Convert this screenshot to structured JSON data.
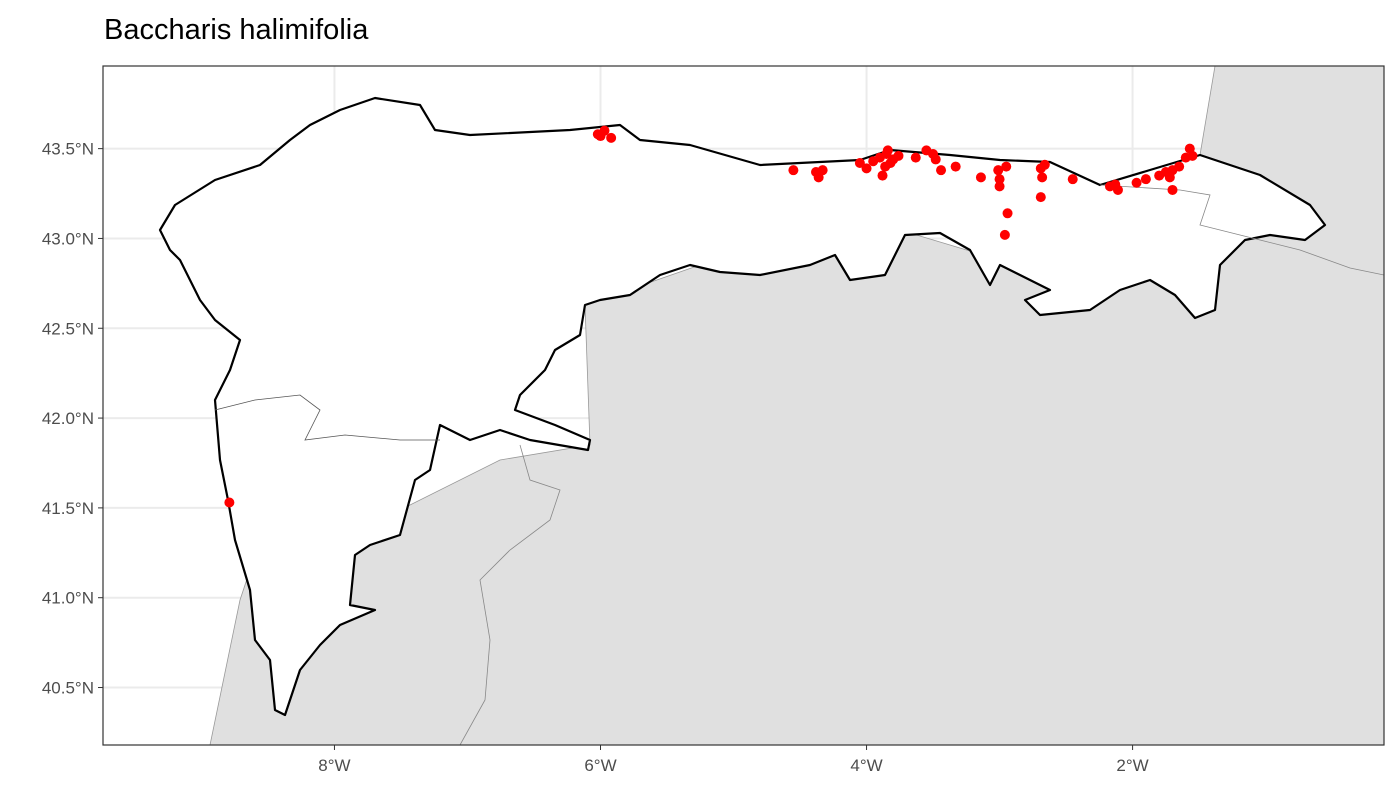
{
  "title": "Baccharis halimifolia",
  "chart_data": {
    "type": "scatter",
    "map": true,
    "title": "Baccharis halimifolia",
    "xlim": [
      -9.74,
      -0.11
    ],
    "ylim": [
      40.18,
      43.96
    ],
    "x_ticks": [
      {
        "value": -8,
        "label": "8°W"
      },
      {
        "value": -6,
        "label": "6°W"
      },
      {
        "value": -4,
        "label": "4°W"
      },
      {
        "value": -2,
        "label": "2°W"
      }
    ],
    "y_ticks": [
      {
        "value": 40.5,
        "label": "40.5°N"
      },
      {
        "value": 41.0,
        "label": "41.0°N"
      },
      {
        "value": 41.5,
        "label": "41.5°N"
      },
      {
        "value": 42.0,
        "label": "42.0°N"
      },
      {
        "value": 42.5,
        "label": "42.5°N"
      },
      {
        "value": 43.0,
        "label": "43.0°N"
      },
      {
        "value": 43.5,
        "label": "43.5°N"
      }
    ],
    "grid": true,
    "point_color": "#ff0000",
    "land_color": "#e0e0e0",
    "points": [
      [
        -8.79,
        41.53
      ],
      [
        -6.02,
        43.58
      ],
      [
        -5.97,
        43.6
      ],
      [
        -5.92,
        43.56
      ],
      [
        -6.0,
        43.57
      ],
      [
        -4.55,
        43.38
      ],
      [
        -4.38,
        43.37
      ],
      [
        -4.33,
        43.38
      ],
      [
        -4.36,
        43.34
      ],
      [
        -4.05,
        43.42
      ],
      [
        -4.0,
        43.39
      ],
      [
        -3.95,
        43.43
      ],
      [
        -3.9,
        43.45
      ],
      [
        -3.85,
        43.47
      ],
      [
        -3.82,
        43.42
      ],
      [
        -3.88,
        43.35
      ],
      [
        -3.86,
        43.4
      ],
      [
        -3.8,
        43.44
      ],
      [
        -3.76,
        43.46
      ],
      [
        -3.84,
        43.49
      ],
      [
        -3.63,
        43.45
      ],
      [
        -3.55,
        43.49
      ],
      [
        -3.5,
        43.47
      ],
      [
        -3.48,
        43.44
      ],
      [
        -3.44,
        43.38
      ],
      [
        -3.33,
        43.4
      ],
      [
        -3.14,
        43.34
      ],
      [
        -3.01,
        43.38
      ],
      [
        -3.0,
        43.29
      ],
      [
        -3.0,
        43.33
      ],
      [
        -2.95,
        43.4
      ],
      [
        -2.94,
        43.14
      ],
      [
        -2.96,
        43.02
      ],
      [
        -2.69,
        43.39
      ],
      [
        -2.68,
        43.34
      ],
      [
        -2.69,
        43.23
      ],
      [
        -2.66,
        43.41
      ],
      [
        -2.45,
        43.33
      ],
      [
        -2.17,
        43.29
      ],
      [
        -2.11,
        43.27
      ],
      [
        -2.13,
        43.3
      ],
      [
        -1.97,
        43.31
      ],
      [
        -1.9,
        43.33
      ],
      [
        -1.8,
        43.35
      ],
      [
        -1.75,
        43.37
      ],
      [
        -1.7,
        43.38
      ],
      [
        -1.65,
        43.4
      ],
      [
        -1.6,
        43.45
      ],
      [
        -1.57,
        43.5
      ],
      [
        -1.55,
        43.46
      ],
      [
        -1.72,
        43.34
      ],
      [
        -1.7,
        43.27
      ]
    ]
  }
}
